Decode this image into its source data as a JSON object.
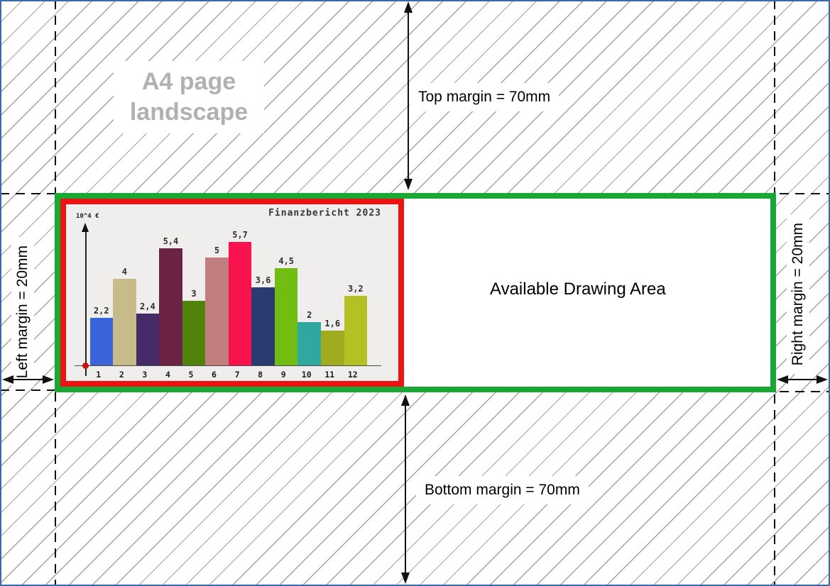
{
  "diagram": {
    "ghost_title_line1": "A4 page",
    "ghost_title_line2": "landscape",
    "drawing_area_label": "Available Drawing Area",
    "margins": {
      "top": "Top margin = 70mm",
      "bottom": "Bottom margin = 70mm",
      "left": "Left margin = 20mm",
      "right": "Right margin = 20mm"
    },
    "colors": {
      "page_border": "#3a69ae",
      "drawing_area_border": "#1aa835",
      "chart_frame_border": "#ec1313",
      "hatch_line": "#a2a2a2",
      "ghost_title": "#b1b1b1"
    }
  },
  "chart_data": {
    "type": "bar",
    "title": "Finanzbericht 2023",
    "ylabel": "10^4 €",
    "xlabel": "",
    "categories": [
      "1",
      "2",
      "3",
      "4",
      "5",
      "6",
      "7",
      "8",
      "9",
      "10",
      "11",
      "12"
    ],
    "values": [
      2.2,
      4,
      2.4,
      5.4,
      3,
      5,
      5.7,
      3.6,
      4.5,
      2,
      1.6,
      3.2
    ],
    "value_labels": [
      "2,2",
      "4",
      "2,4",
      "5,4",
      "3",
      "5",
      "5,7",
      "3,6",
      "4,5",
      "2",
      "1,6",
      "3,2"
    ],
    "bar_colors": [
      "#3a64d8",
      "#c7bb89",
      "#472a68",
      "#6b2346",
      "#4f830b",
      "#c27e7e",
      "#f8124e",
      "#2b3a71",
      "#72bd11",
      "#2fa9a0",
      "#a0ab20",
      "#b4c024"
    ],
    "background": "#efeeec",
    "axis_color": "#222222",
    "origin_dot_color": "#cc1111",
    "ylim": [
      0,
      6
    ],
    "grid": false,
    "legend": "none"
  }
}
